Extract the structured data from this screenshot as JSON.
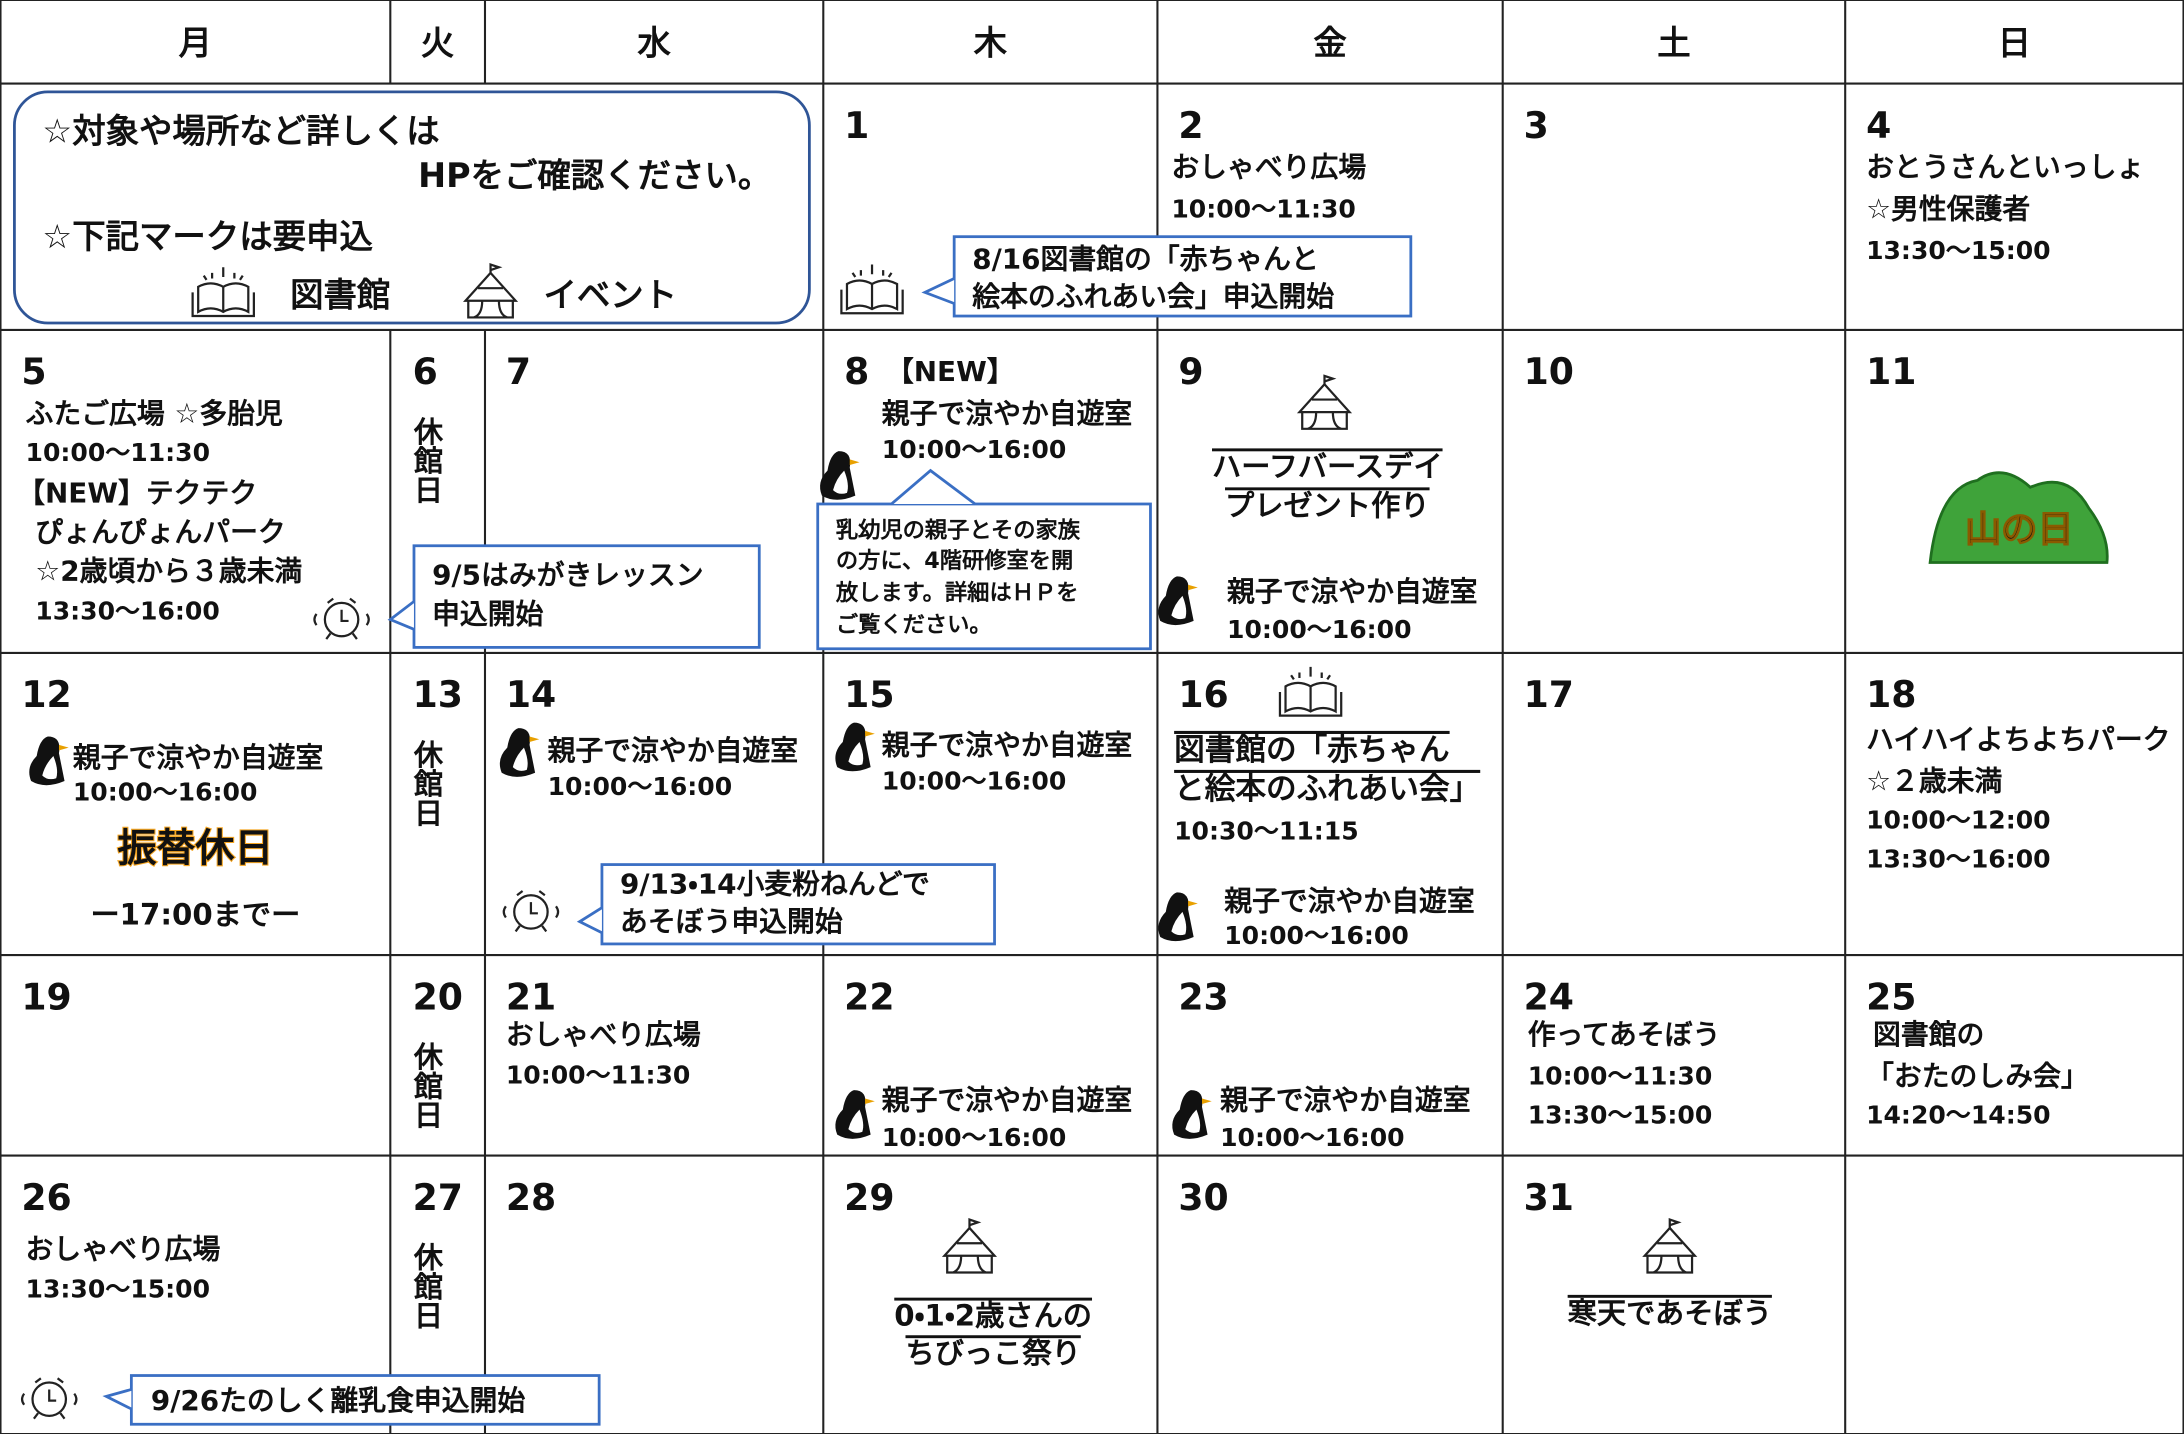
{
  "header": {
    "days": [
      "月",
      "火",
      "水",
      "木",
      "金",
      "土",
      "日"
    ]
  },
  "notice": {
    "lines": [
      "☆対象や場所など詳しくは",
      "HPをご確認ください。",
      "☆下記マークは要申込"
    ],
    "legend": [
      "図書館",
      "イベント"
    ]
  },
  "calendar": {
    "cells": [
      {
        "date": "1"
      },
      {
        "date": "2",
        "lines": [
          "おしゃべり広場",
          "10:00〜11:30"
        ]
      },
      {
        "date": "3"
      },
      {
        "date": "4",
        "lines": [
          "おとうさんといっしょ",
          "☆男性保護者",
          "13:30〜15:00"
        ]
      },
      {
        "date": "5",
        "lines": [
          "ふたご広場 ☆多胎児",
          "10:00〜11:30",
          "【NEW】テクテク",
          "ぴょんぴょんパーク",
          "☆2歳頃から３歳未満",
          "13:30〜16:00"
        ]
      },
      {
        "date": "6",
        "closed": "休館日"
      },
      {
        "date": "7"
      },
      {
        "date": "8",
        "tag": "【NEW】",
        "lines": [
          "親子で涼やか自遊室",
          "10:00〜16:00"
        ]
      },
      {
        "date": "9",
        "lines": [
          "ハーフバースデイ",
          "プレゼント作り",
          "親子で涼やか自遊室",
          "10:00〜16:00"
        ]
      },
      {
        "date": "10"
      },
      {
        "date": "11",
        "badge": "山の日"
      },
      {
        "date": "12",
        "lines": [
          "親子で涼やか自遊室",
          "10:00〜16:00",
          "ー17:00までー"
        ],
        "badge": "振替休日"
      },
      {
        "date": "13",
        "closed": "休館日"
      },
      {
        "date": "14",
        "lines": [
          "親子で涼やか自遊室",
          "10:00〜16:00"
        ]
      },
      {
        "date": "15",
        "lines": [
          "親子で涼やか自遊室",
          "10:00〜16:00"
        ]
      },
      {
        "date": "16",
        "lines": [
          "図書館の「赤ちゃん",
          "と絵本のふれあい会」",
          "10:30〜11:15",
          "親子で涼やか自遊室",
          "10:00〜16:00"
        ]
      },
      {
        "date": "17"
      },
      {
        "date": "18",
        "lines": [
          "ハイハイよちよちパーク",
          "☆２歳未満",
          "10:00〜12:00",
          "13:30〜16:00"
        ]
      },
      {
        "date": "19"
      },
      {
        "date": "20",
        "closed": "休館日"
      },
      {
        "date": "21",
        "lines": [
          "おしゃべり広場",
          "10:00〜11:30"
        ]
      },
      {
        "date": "22",
        "lines": [
          "親子で涼やか自遊室",
          "10:00〜16:00"
        ]
      },
      {
        "date": "23",
        "lines": [
          "親子で涼やか自遊室",
          "10:00〜16:00"
        ]
      },
      {
        "date": "24",
        "lines": [
          "作ってあそぼう",
          "10:00〜11:30",
          "13:30〜15:00"
        ]
      },
      {
        "date": "25",
        "lines": [
          "図書館の",
          "「おたのしみ会」",
          "14:20〜14:50"
        ]
      },
      {
        "date": "26",
        "lines": [
          "おしゃべり広場",
          "13:30〜15:00"
        ]
      },
      {
        "date": "27",
        "closed": "休館日"
      },
      {
        "date": "28"
      },
      {
        "date": "29",
        "lines": [
          "0・1・2歳さんの",
          "ちびっこ祭り"
        ]
      },
      {
        "date": "30"
      },
      {
        "date": "31",
        "lines": [
          "寒天であそぼう"
        ]
      }
    ],
    "callouts": [
      {
        "lines": [
          "8/16図書館の「赤ちゃんと",
          "絵本のふれあい会」申込開始"
        ]
      },
      {
        "lines": [
          "9/5はみがきレッスン",
          "申込開始"
        ]
      },
      {
        "lines": [
          "乳幼児の親子とその家族",
          "の方に、4階研修室を開",
          "放します。詳細はＨＰを",
          "ご覧ください。"
        ]
      },
      {
        "lines": [
          "9/13・14小麦粉ねんどで",
          "あそぼう申込開始"
        ]
      },
      {
        "lines": [
          "9/26たのしく離乳食申込開始"
        ]
      }
    ]
  }
}
